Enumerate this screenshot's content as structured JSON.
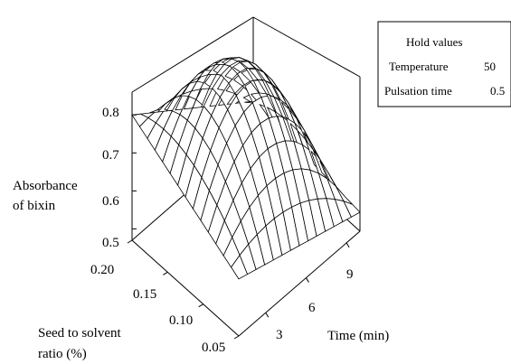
{
  "chart_data": {
    "type": "surface",
    "zlabel": [
      "Absorbance",
      "of bixin"
    ],
    "xlabel": [
      "Seed to solvent",
      "ratio (%)"
    ],
    "ylabel": "Time (min)",
    "z_ticks": [
      "0.5",
      "0.6",
      "0.7",
      "0.8"
    ],
    "x_ticks": [
      "0.05",
      "0.10",
      "0.15",
      "0.20"
    ],
    "y_ticks": [
      "3",
      "6",
      "9"
    ],
    "zlim": [
      0.47,
      0.86
    ],
    "xlim": [
      0.05,
      0.2
    ],
    "ylim": [
      1,
      10
    ],
    "grid": "14x14 mesh",
    "corners": [
      {
        "seed_ratio": 0.05,
        "time_min": 1,
        "absorbance": 0.62
      },
      {
        "seed_ratio": 0.2,
        "time_min": 1,
        "absorbance": 0.8
      },
      {
        "seed_ratio": 0.05,
        "time_min": 10,
        "absorbance": 0.52
      },
      {
        "seed_ratio": 0.2,
        "time_min": 10,
        "absorbance": 0.56
      }
    ],
    "peak": {
      "seed_ratio": 0.17,
      "time_min": 4.5,
      "absorbance": 0.855
    },
    "surface_color": "#ffffff",
    "line_color": "#000000",
    "legend": {
      "title": "Hold values",
      "rows": [
        {
          "name": "Temperature",
          "value": "50"
        },
        {
          "name": "Pulsation time",
          "value": "0.5"
        }
      ]
    }
  }
}
